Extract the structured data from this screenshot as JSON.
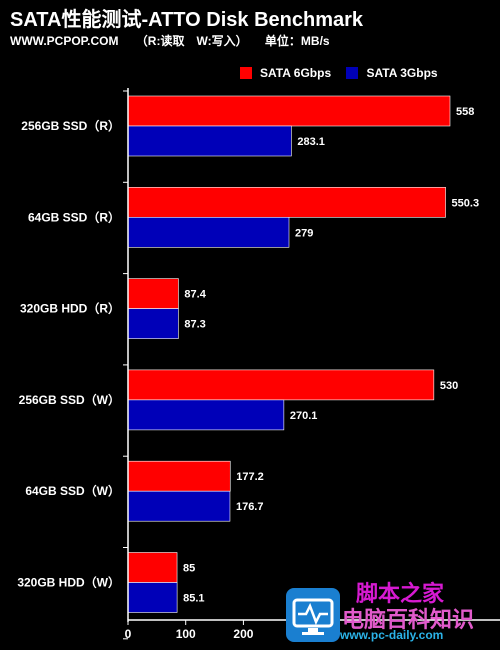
{
  "header": {
    "title": "SATA性能测试-ATTO Disk Benchmark",
    "site": "WWW.PCPOP.COM",
    "legend_note": "（R:读取　W:写入）",
    "unit_label": "单位：MB/s"
  },
  "watermark": {
    "line1": "脚本之家",
    "line2": "电脑百科知识",
    "url": "www.pc-daily.com"
  },
  "colors": {
    "background": "#000000",
    "sata6": "#ff0000",
    "sata3": "#0000b8"
  },
  "chart_data": {
    "type": "bar",
    "orientation": "horizontal",
    "title": "SATA性能测试-ATTO Disk Benchmark",
    "categories": [
      "256GB SSD（R）",
      "64GB SSD（R）",
      "320GB HDD（R）",
      "256GB SSD（W）",
      "64GB SSD（W）",
      "320GB HDD（W）"
    ],
    "series": [
      {
        "name": "SATA 6Gbps",
        "values": [
          558,
          550.3,
          87.4,
          530,
          177.2,
          85
        ]
      },
      {
        "name": "SATA 3Gbps",
        "values": [
          283.1,
          279,
          87.3,
          270.1,
          176.7,
          85.1
        ]
      }
    ],
    "value_labels": {
      "SATA 6Gbps": [
        "558",
        "550.3",
        "87.4",
        "530",
        "177.2",
        "85"
      ],
      "SATA 3Gbps": [
        "283.1",
        "279",
        "87.3",
        "270.1",
        "176.7",
        "85.1"
      ]
    },
    "x_ticks": [
      0,
      100,
      200
    ],
    "xlim": [
      0,
      570
    ],
    "grid": false,
    "legend_position": "top-right"
  }
}
